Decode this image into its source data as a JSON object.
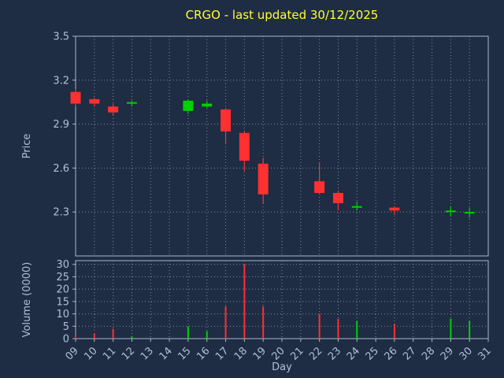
{
  "title": "CRGO - last updated 30/12/2025",
  "axes": {
    "price_label": "Price",
    "volume_label": "Volume (0000)",
    "day_label": "Day"
  },
  "colors": {
    "background": "#1e2c44",
    "title": "#ffff33",
    "tick_text": "#b0c0d8",
    "grid": "#8090a0",
    "spine": "#aab8cc",
    "up": "#00d000",
    "down": "#ff3030"
  },
  "chart_data": [
    {
      "type": "candlestick",
      "title": "CRGO - last updated 30/12/2025",
      "xlabel": "Day",
      "ylabel": "Price",
      "xlim": [
        9,
        31
      ],
      "ylim": [
        2.0,
        3.5
      ],
      "yticks": [
        2.3,
        2.6,
        2.9,
        3.2,
        3.5
      ],
      "xticks": [
        9,
        10,
        11,
        12,
        13,
        14,
        15,
        16,
        17,
        18,
        19,
        20,
        21,
        22,
        23,
        24,
        25,
        26,
        27,
        28,
        29,
        30,
        31
      ],
      "xtick_labels": [
        "09",
        "10",
        "11",
        "12",
        "13",
        "14",
        "15",
        "16",
        "17",
        "18",
        "19",
        "20",
        "21",
        "22",
        "23",
        "24",
        "25",
        "26",
        "27",
        "28",
        "29",
        "30",
        "31"
      ],
      "days": [
        9,
        10,
        11,
        12,
        15,
        16,
        17,
        18,
        19,
        22,
        23,
        24,
        26,
        29,
        30
      ],
      "ohlc": [
        [
          3.12,
          3.14,
          3.02,
          3.04
        ],
        [
          3.07,
          3.08,
          3.02,
          3.04
        ],
        [
          3.02,
          3.04,
          2.96,
          2.98
        ],
        [
          3.04,
          3.06,
          3.02,
          3.05
        ],
        [
          2.99,
          3.07,
          2.97,
          3.06
        ],
        [
          3.02,
          3.06,
          3.01,
          3.04
        ],
        [
          3.0,
          3.01,
          2.77,
          2.85
        ],
        [
          2.84,
          2.85,
          2.58,
          2.65
        ],
        [
          2.63,
          2.67,
          2.36,
          2.42
        ],
        [
          2.51,
          2.64,
          2.42,
          2.43
        ],
        [
          2.43,
          2.44,
          2.31,
          2.36
        ],
        [
          2.33,
          2.37,
          2.31,
          2.34
        ],
        [
          2.33,
          2.34,
          2.28,
          2.31
        ],
        [
          2.3,
          2.34,
          2.27,
          2.31
        ],
        [
          2.29,
          2.33,
          2.26,
          2.3
        ]
      ]
    },
    {
      "type": "bar",
      "ylabel": "Volume (0000)",
      "ylim": [
        0,
        31.5
      ],
      "yticks": [
        0,
        5,
        10,
        15,
        20,
        25,
        30
      ],
      "days": [
        9,
        10,
        11,
        12,
        15,
        16,
        17,
        18,
        19,
        22,
        23,
        24,
        26,
        29,
        30
      ],
      "values": [
        1.5,
        2,
        4,
        1,
        5,
        3,
        13,
        30,
        13,
        10,
        8,
        7,
        6,
        8,
        7
      ]
    }
  ]
}
